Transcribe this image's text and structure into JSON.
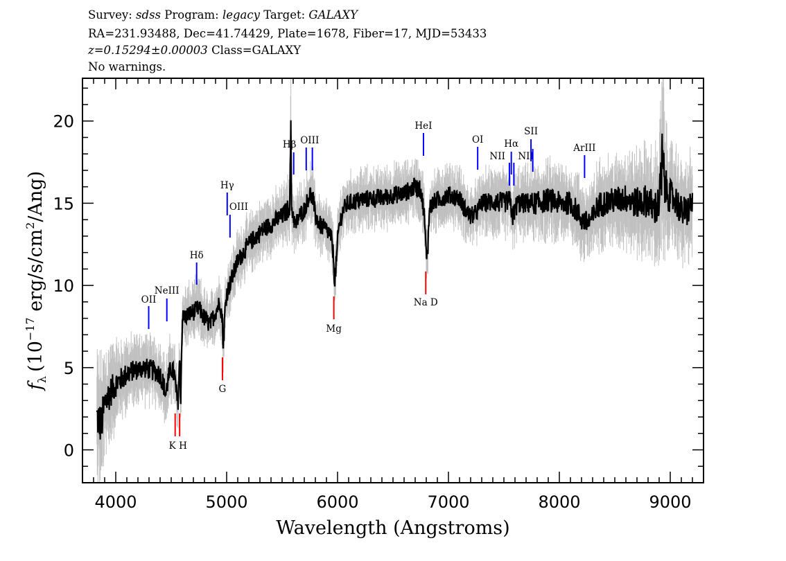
{
  "header": {
    "line1": {
      "survey_label": "Survey:",
      "survey": "sdss",
      "program_label": "Program:",
      "program": "legacy",
      "target_label": "Target:",
      "target": "GALAXY"
    },
    "line2": "RA=231.93488, Dec=41.74429, Plate=1678, Fiber=17, MJD=53433",
    "line3": {
      "redshift": "z=0.15294±0.00003",
      "class": "Class=GALAXY"
    },
    "line4": "No warnings."
  },
  "chart_data": {
    "type": "line",
    "title": "",
    "xlabel": "Wavelength (Angstroms)",
    "ylabel": "f_λ (10^-17 erg/s/cm^2/Ang)",
    "ylabel_parts": {
      "f": "f",
      "sub": "λ",
      "pre": "(10",
      "exp1": "−17",
      "mid": " erg/s/cm",
      "exp2": "2",
      "post": "/Ang)"
    },
    "xlim": [
      3700,
      9300
    ],
    "ylim": [
      -2,
      22.6
    ],
    "xticks": [
      4000,
      5000,
      6000,
      7000,
      8000,
      9000
    ],
    "yticks": [
      0,
      5,
      10,
      15,
      20
    ],
    "grid": false,
    "redshift": 0.15294,
    "colors": {
      "flux": "#000000",
      "error": "#c0c0c0",
      "emission": "#0000ff",
      "absorption": "#ff0000"
    },
    "series": [
      {
        "wavelength": [
          3830,
          3870,
          3900,
          3950,
          4000,
          4050,
          4100,
          4150,
          4200,
          4250,
          4300,
          4350,
          4400,
          4430,
          4450,
          4470,
          4500,
          4530,
          4545,
          4560,
          4575,
          4585,
          4600,
          4650,
          4700,
          4750,
          4800,
          4850,
          4900,
          4940,
          4960,
          4970,
          4985,
          5000,
          5050,
          5100,
          5150,
          5200,
          5250,
          5300,
          5350,
          5400,
          5450,
          5500,
          5550,
          5570,
          5577,
          5585,
          5600,
          5620,
          5650,
          5700,
          5750,
          5780,
          5800,
          5850,
          5900,
          5940,
          5960,
          5975,
          5990,
          6010,
          6050,
          6100,
          6150,
          6200,
          6300,
          6400,
          6500,
          6600,
          6700,
          6750,
          6780,
          6800,
          6815,
          6830,
          6860,
          6900,
          7000,
          7100,
          7150,
          7200,
          7250,
          7300,
          7400,
          7500,
          7550,
          7580,
          7620,
          7650,
          7700,
          7800,
          7900,
          8000,
          8100,
          8150,
          8200,
          8250,
          8300,
          8350,
          8400,
          8500,
          8600,
          8700,
          8800,
          8850,
          8900,
          8930,
          8950,
          9000,
          9050,
          9100,
          9150,
          9200
        ],
        "flux": [
          2.0,
          1.5,
          2.8,
          3.5,
          4.0,
          4.3,
          4.6,
          4.8,
          4.9,
          5.0,
          4.9,
          4.8,
          4.6,
          4.0,
          3.3,
          4.2,
          5.0,
          4.5,
          3.5,
          2.7,
          5.5,
          3.0,
          8.0,
          8.2,
          8.4,
          8.6,
          8.0,
          7.6,
          8.4,
          9.0,
          8.0,
          6.2,
          8.5,
          9.5,
          10.5,
          11.5,
          12.0,
          12.5,
          12.9,
          13.2,
          13.5,
          13.7,
          14.0,
          14.2,
          14.6,
          15.0,
          19.8,
          14.8,
          14.3,
          13.6,
          14.2,
          14.6,
          15.6,
          15.2,
          14.2,
          13.6,
          13.4,
          13.0,
          12.0,
          10.2,
          11.5,
          13.5,
          14.6,
          15.0,
          15.1,
          15.2,
          15.3,
          15.3,
          15.5,
          15.6,
          16.0,
          15.8,
          14.5,
          11.8,
          12.5,
          14.7,
          15.0,
          15.2,
          15.5,
          15.3,
          14.6,
          14.2,
          14.4,
          15.0,
          15.1,
          15.0,
          15.2,
          14.2,
          15.0,
          15.0,
          15.0,
          15.0,
          15.2,
          15.0,
          15.0,
          14.6,
          14.0,
          13.8,
          14.1,
          14.9,
          15.0,
          15.2,
          15.3,
          15.0,
          15.2,
          14.6,
          15.0,
          17.5,
          16.0,
          15.4,
          15.2,
          14.5,
          14.5,
          15.0
        ],
        "error": [
          1.6,
          1.6,
          1.4,
          1.2,
          1.0,
          0.9,
          0.9,
          0.8,
          0.8,
          0.8,
          0.8,
          0.8,
          0.8,
          0.8,
          0.8,
          0.8,
          0.8,
          0.8,
          0.8,
          0.8,
          0.8,
          0.8,
          0.7,
          0.7,
          0.7,
          0.7,
          0.7,
          0.7,
          0.7,
          0.7,
          0.7,
          0.7,
          0.7,
          0.7,
          0.7,
          0.7,
          0.7,
          0.7,
          0.7,
          0.7,
          0.7,
          0.7,
          0.7,
          0.7,
          0.8,
          0.9,
          2.5,
          0.9,
          0.7,
          0.7,
          0.7,
          0.7,
          0.7,
          0.7,
          0.7,
          0.7,
          0.7,
          0.7,
          0.7,
          0.7,
          0.7,
          0.7,
          0.7,
          0.7,
          0.7,
          0.7,
          0.7,
          0.7,
          0.7,
          0.7,
          0.7,
          0.7,
          0.7,
          0.7,
          0.7,
          0.7,
          0.7,
          0.7,
          0.7,
          0.7,
          0.7,
          0.7,
          0.7,
          0.7,
          0.8,
          0.8,
          0.8,
          0.8,
          0.8,
          0.8,
          0.8,
          0.9,
          0.9,
          0.9,
          0.9,
          0.9,
          0.9,
          0.9,
          0.9,
          1.0,
          1.0,
          1.0,
          1.1,
          1.2,
          1.3,
          1.3,
          1.5,
          3.0,
          1.5,
          1.3,
          1.2,
          1.2,
          1.2,
          1.2
        ]
      }
    ],
    "lines": [
      {
        "label": "OII",
        "rest": 3727,
        "type": "emission"
      },
      {
        "label": "NeIII",
        "rest": 3869,
        "type": "emission"
      },
      {
        "label": "Hδ",
        "rest": 4102,
        "type": "emission"
      },
      {
        "label": "Hγ",
        "rest": 4341,
        "type": "emission"
      },
      {
        "label": "OIII",
        "rest": 4363,
        "type": "emission"
      },
      {
        "label": "Hβ",
        "rest": 4861,
        "type": "emission"
      },
      {
        "label": "OIII",
        "rest": 4959,
        "type": "emission"
      },
      {
        "label": "",
        "rest": 5007,
        "type": "emission"
      },
      {
        "label": "HeI",
        "rest": 5876,
        "type": "emission"
      },
      {
        "label": "OI",
        "rest": 6300,
        "type": "emission"
      },
      {
        "label": "NII",
        "rest": 6548,
        "type": "emission"
      },
      {
        "label": "Hα",
        "rest": 6563,
        "type": "emission"
      },
      {
        "label": "NII",
        "rest": 6583,
        "type": "emission"
      },
      {
        "label": "SII",
        "rest": 6717,
        "type": "emission"
      },
      {
        "label": "",
        "rest": 6731,
        "type": "emission"
      },
      {
        "label": "ArIII",
        "rest": 7136,
        "type": "emission"
      },
      {
        "label": "K",
        "rest": 3934,
        "type": "absorption"
      },
      {
        "label": "H",
        "rest": 3969,
        "type": "absorption"
      },
      {
        "label": "G",
        "rest": 4304,
        "type": "absorption"
      },
      {
        "label": "Mg",
        "rest": 5175,
        "type": "absorption"
      },
      {
        "label": "Na D",
        "rest": 5894,
        "type": "absorption"
      }
    ]
  }
}
